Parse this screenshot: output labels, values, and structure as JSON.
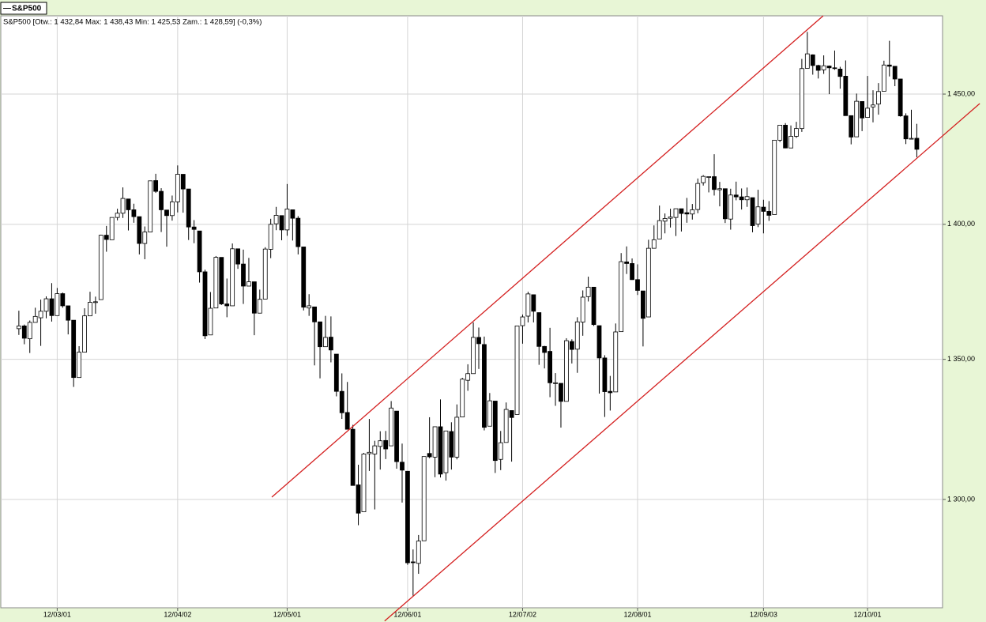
{
  "chart_data": {
    "type": "candlestick",
    "name": "S&P500",
    "header": "S&P500 [Otw.: 1 432,84  Max: 1 438,43  Min: 1 425,53  Zam.: 1 428,59] (-0,3%)",
    "log": true,
    "grid": true,
    "up_color": "#ffffff",
    "down_color": "#000000",
    "edge_color": "#000000",
    "xlim": [
      -3.3,
      168.7
    ],
    "ylim": [
      1262.6,
      1480.9
    ],
    "yticks": [
      {
        "value": 1300,
        "label": "1 300,00"
      },
      {
        "value": 1350,
        "label": "1 350,00"
      },
      {
        "value": 1400,
        "label": "1 400,00"
      },
      {
        "value": 1450,
        "label": "1 450,00"
      }
    ],
    "categories": [
      null,
      null,
      null,
      null,
      null,
      null,
      null,
      "12/03/01",
      null,
      null,
      null,
      null,
      null,
      null,
      null,
      null,
      null,
      null,
      null,
      null,
      null,
      null,
      null,
      null,
      null,
      null,
      null,
      null,
      null,
      "12/04/02",
      null,
      null,
      null,
      null,
      null,
      null,
      null,
      null,
      null,
      null,
      null,
      null,
      null,
      null,
      null,
      null,
      null,
      null,
      null,
      "12/05/01",
      null,
      null,
      null,
      null,
      null,
      null,
      null,
      null,
      null,
      null,
      null,
      null,
      null,
      null,
      null,
      null,
      null,
      null,
      null,
      null,
      null,
      "12/06/01",
      null,
      null,
      null,
      null,
      null,
      null,
      null,
      null,
      null,
      null,
      null,
      null,
      null,
      null,
      null,
      null,
      null,
      null,
      null,
      null,
      "12/07/02",
      null,
      null,
      null,
      null,
      null,
      null,
      null,
      null,
      null,
      null,
      null,
      null,
      null,
      null,
      null,
      null,
      null,
      null,
      null,
      null,
      "12/08/01",
      null,
      null,
      null,
      null,
      null,
      null,
      null,
      null,
      null,
      null,
      null,
      null,
      null,
      null,
      null,
      null,
      null,
      null,
      null,
      null,
      null,
      null,
      "12/09/03",
      null,
      null,
      null,
      null,
      null,
      null,
      null,
      null,
      null,
      null,
      null,
      null,
      null,
      null,
      null,
      null,
      null,
      null,
      "12/10/01",
      null,
      null,
      null,
      null,
      null,
      null,
      null,
      null,
      null
    ],
    "open": [
      1361.2,
      1362.2,
      1357.5,
      1363.5,
      1365.2,
      1367.6,
      1372.2,
      1366.0,
      1374.1,
      1369.6,
      1364.3,
      1343.4,
      1352.6,
      1365.9,
      1370.8,
      1371.9,
      1395.9,
      1394.2,
      1402.6,
      1404.2,
      1409.6,
      1405.5,
      1402.9,
      1392.8,
      1397.1,
      1416.6,
      1412.5,
      1405.4,
      1403.3,
      1408.5,
      1419.0,
      1413.4,
      1399.0,
      1397.5,
      1382.2,
      1358.9,
      1368.8,
      1387.6,
      1370.3,
      1369.6,
      1390.8,
      1385.1,
      1376.9,
      1378.5,
      1366.9,
      1372.1,
      1390.6,
      1400.2,
      1403.3,
      1397.9,
      1405.5,
      1402.3,
      1391.5,
      1368.8,
      1369.2,
      1363.7,
      1354.6,
      1358.1,
      1351.9,
      1338.4,
      1330.8,
      1324.8,
      1305.1,
      1295.7,
      1316.1,
      1316.0,
      1318.7,
      1320.8,
      1318.9,
      1331.3,
      1313.1,
      1309.9,
      1278.3,
      1277.8,
      1285.6,
      1316.2,
      1314.9,
      1325.7,
      1309.4,
      1324.0,
      1314.9,
      1329.2,
      1342.4,
      1344.8,
      1358.0,
      1355.4,
      1325.9,
      1334.9,
      1314.1,
      1320.1,
      1331.5,
      1330.1,
      1362.3,
      1365.8,
      1373.7,
      1367.1,
      1354.7,
      1352.9,
      1341.4,
      1341.3,
      1334.8,
      1356.5,
      1353.7,
      1363.6,
      1373.0,
      1376.5,
      1362.3,
      1350.5,
      1338.4,
      1338.2,
      1360.1,
      1385.9,
      1385.3,
      1379.3,
      1375.1,
      1365.5,
      1391.0,
      1394.5,
      1401.2,
      1402.3,
      1402.6,
      1405.9,
      1404.4,
      1403.9,
      1405.6,
      1415.8,
      1417.8,
      1418.1,
      1413.1,
      1413.5,
      1401.99,
      1411.1,
      1410.4,
      1409.3,
      1410.1,
      1400.1,
      1406.5,
      1404.9,
      1403.7,
      1432.1,
      1437.9,
      1429.1,
      1433.6,
      1436.6,
      1460.1,
      1465.4,
      1461.2,
      1459.5,
      1461.0,
      1460.3,
      1459.8,
      1457.0,
      1441.6,
      1433.4,
      1447.1,
      1440.9,
      1444.99,
      1446.1,
      1451.1,
      1461.4,
      1460.9,
      1455.9,
      1441.5,
      1432.8,
      1432.84
    ],
    "high": [
      1367.8,
      1362.7,
      1364.2,
      1368.9,
      1371.9,
      1373.1,
      1378.0,
      1376.2,
      1374.5,
      1369.6,
      1364.3,
      1354.8,
      1368.7,
      1374.8,
      1373.0,
      1396.1,
      1399.4,
      1402.6,
      1405.9,
      1414.0,
      1409.6,
      1407.8,
      1402.9,
      1399.2,
      1416.6,
      1419.2,
      1413.7,
      1405.4,
      1410.9,
      1422.4,
      1419.0,
      1413.4,
      1401.6,
      1397.5,
      1383.0,
      1374.7,
      1388.1,
      1387.6,
      1379.7,
      1392.8,
      1390.8,
      1390.5,
      1387.4,
      1378.5,
      1375.6,
      1391.4,
      1402.1,
      1406.6,
      1403.3,
      1415.3,
      1405.5,
      1403.1,
      1391.5,
      1373.9,
      1369.2,
      1363.7,
      1365.9,
      1365.7,
      1351.9,
      1344.9,
      1341.8,
      1326.4,
      1312.2,
      1316.4,
      1328.5,
      1320.7,
      1324.1,
      1324.2,
      1334.9,
      1331.3,
      1319.7,
      1309.9,
      1282.6,
      1287.6,
      1315.1,
      1329.1,
      1325.8,
      1335.5,
      1324.3,
      1327.3,
      1333.7,
      1343.3,
      1348.2,
      1363.5,
      1361.6,
      1358.3,
      1337.8,
      1334.9,
      1324.2,
      1334.4,
      1331.5,
      1362.2,
      1366.4,
      1374.8,
      1373.8,
      1367.1,
      1354.9,
      1361.5,
      1345.0,
      1341.3,
      1357.7,
      1357.3,
      1365.4,
      1375.3,
      1380.4,
      1376.5,
      1362.3,
      1351.5,
      1343.98,
      1363.1,
      1389.2,
      1391.7,
      1387.2,
      1385.0,
      1375.1,
      1394.2,
      1399.6,
      1407.1,
      1404.1,
      1405.9,
      1405.98,
      1405.9,
      1410.0,
      1407.7,
      1417.4,
      1418.7,
      1418.1,
      1426.7,
      1416.1,
      1413.5,
      1413.5,
      1416.2,
      1413.6,
      1413.95,
      1410.1,
      1413.1,
      1409.3,
      1408.8,
      1432.1,
      1437.9,
      1438.7,
      1437.8,
      1439.2,
      1463.8,
      1474.5,
      1465.6,
      1461.5,
      1465.2,
      1461.2,
      1467.1,
      1460.7,
      1463.2,
      1441.6,
      1450.2,
      1447.1,
      1457.1,
      1451.5,
      1454.3,
      1463.1,
      1470.96,
      1460.9,
      1455.9,
      1442.5,
      1443.9,
      1438.43
    ],
    "low": [
      1358.9,
      1355.5,
      1352.3,
      1363.5,
      1354.9,
      1365.0,
      1363.8,
      1366.0,
      1368.9,
      1359.1,
      1340.0,
      1343.4,
      1352.6,
      1365.9,
      1366.7,
      1371.9,
      1389.7,
      1394.2,
      1401.5,
      1402.4,
      1397.7,
      1400.6,
      1388.7,
      1386.9,
      1397.1,
      1411.9,
      1397.1,
      1391.6,
      1401.4,
      1404.5,
      1404.4,
      1394.1,
      1392.9,
      1378.2,
      1357.4,
      1358.9,
      1368.8,
      1369.9,
      1365.4,
      1369.6,
      1383.3,
      1370.3,
      1376.9,
      1358.8,
      1366.8,
      1372.1,
      1387.3,
      1397.8,
      1394.0,
      1395.7,
      1393.9,
      1388.7,
      1367.9,
      1365.9,
      1347.8,
      1343.1,
      1354.6,
      1348.9,
      1336.6,
      1328.5,
      1324.8,
      1304.9,
      1291.0,
      1295.7,
      1310.0,
      1296.5,
      1310.5,
      1314.2,
      1318.9,
      1310.8,
      1298.9,
      1277.3,
      1266.7,
      1274.2,
      1285.6,
      1314.5,
      1307.8,
      1307.7,
      1306.6,
      1310.5,
      1314.1,
      1329.2,
      1338.6,
      1344.8,
      1346.5,
      1324.4,
      1325.9,
      1309.3,
      1310.3,
      1320.1,
      1313.3,
      1330.1,
      1355.7,
      1363.5,
      1363.5,
      1348.0,
      1346.7,
      1336.3,
      1333.2,
      1325.4,
      1334.8,
      1348.5,
      1345.1,
      1358.6,
      1371.2,
      1362.2,
      1337.6,
      1329.2,
      1331.5,
      1338.2,
      1360.1,
      1381.4,
      1379.2,
      1373.6,
      1354.7,
      1365.5,
      1391.0,
      1394.5,
      1396.6,
      1398.8,
      1395.6,
      1397.3,
      1400.6,
      1401.8,
      1404.2,
      1414.7,
      1412.1,
      1410.9,
      1406.8,
      1400.5,
      1398.0,
      1409.1,
      1405.6,
      1406.6,
      1397.0,
      1398.96,
      1396.6,
      1401.3,
      1403.7,
      1431.4,
      1428.98,
      1429.1,
      1432.99,
      1435.3,
      1460.1,
      1457.6,
      1456.1,
      1457.9,
      1449.98,
      1459.5,
      1452.1,
      1441.6,
      1430.5,
      1433.4,
      1435.6,
      1440.9,
      1439.0,
      1441.99,
      1451.1,
      1456.9,
      1453.1,
      1441.2,
      1430.6,
      1432.8,
      1425.53
    ],
    "close": [
      1362.2,
      1357.7,
      1363.5,
      1365.7,
      1367.6,
      1372.2,
      1366.0,
      1374.1,
      1369.6,
      1364.3,
      1343.4,
      1352.6,
      1365.9,
      1370.9,
      1371.1,
      1395.9,
      1394.3,
      1402.6,
      1404.2,
      1409.8,
      1405.5,
      1402.9,
      1392.8,
      1397.1,
      1416.5,
      1412.5,
      1405.5,
      1403.3,
      1408.5,
      1419.0,
      1413.4,
      1399.0,
      1398.1,
      1382.2,
      1358.6,
      1368.7,
      1387.6,
      1370.3,
      1369.6,
      1390.8,
      1385.1,
      1376.9,
      1378.5,
      1366.9,
      1372.0,
      1390.7,
      1400.0,
      1403.4,
      1397.9,
      1405.8,
      1402.3,
      1391.6,
      1369.1,
      1369.6,
      1363.7,
      1354.6,
      1358.0,
      1353.4,
      1338.4,
      1330.7,
      1324.8,
      1304.9,
      1295.2,
      1316.0,
      1316.6,
      1318.9,
      1320.7,
      1317.8,
      1332.4,
      1313.3,
      1310.3,
      1278.0,
      1278.2,
      1285.5,
      1315.1,
      1315.0,
      1325.7,
      1308.9,
      1324.2,
      1314.9,
      1329.1,
      1342.8,
      1344.8,
      1358.0,
      1355.7,
      1325.5,
      1335.0,
      1313.7,
      1320.0,
      1331.9,
      1329.0,
      1362.2,
      1365.5,
      1374.0,
      1367.6,
      1354.7,
      1352.5,
      1341.5,
      1341.5,
      1334.8,
      1356.8,
      1353.6,
      1363.7,
      1372.8,
      1376.5,
      1362.7,
      1350.5,
      1338.3,
      1337.9,
      1360.0,
      1386.0,
      1385.3,
      1379.3,
      1375.3,
      1365.0,
      1391.0,
      1394.2,
      1401.4,
      1402.2,
      1402.8,
      1405.9,
      1404.1,
      1403.9,
      1405.5,
      1415.5,
      1418.2,
      1418.1,
      1413.2,
      1413.5,
      1402.1,
      1411.1,
      1410.4,
      1409.3,
      1410.5,
      1399.5,
      1406.6,
      1404.9,
      1403.4,
      1432.1,
      1437.9,
      1429.1,
      1433.6,
      1436.6,
      1460.0,
      1465.8,
      1461.2,
      1459.3,
      1461.1,
      1460.3,
      1460.2,
      1456.9,
      1441.6,
      1433.3,
      1447.2,
      1440.7,
      1444.5,
      1445.75,
      1451.0,
      1461.4,
      1460.9,
      1455.9,
      1441.5,
      1432.6,
      1432.8,
      1428.59
    ],
    "trend_lines": [
      {
        "color": "#d42020",
        "x": [
          46.2,
          146.9
        ],
        "y": [
          1300.8,
          1480.9
        ]
      },
      {
        "color": "#d42020",
        "x": [
          66.8,
          175.5
        ],
        "y": [
          1258.1,
          1446.3
        ]
      }
    ]
  }
}
